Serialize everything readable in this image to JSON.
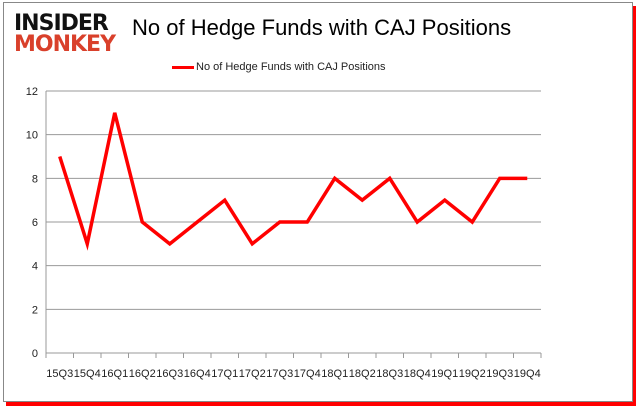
{
  "logo": {
    "line1": "INSIDER",
    "line2": "MONKEY"
  },
  "chart_data": {
    "type": "line",
    "title": "No of Hedge Funds with CAJ Positions",
    "categories": [
      "15Q3",
      "15Q4",
      "16Q1",
      "16Q2",
      "16Q3",
      "16Q4",
      "17Q1",
      "17Q2",
      "17Q3",
      "17Q4",
      "18Q1",
      "18Q2",
      "18Q3",
      "18Q4",
      "19Q1",
      "19Q2",
      "19Q3",
      "19Q4"
    ],
    "series": [
      {
        "name": "No of Hedge Funds with CAJ Positions",
        "values": [
          9,
          5,
          11,
          6,
          5,
          6,
          7,
          5,
          6,
          6,
          8,
          7,
          8,
          6,
          7,
          6,
          8,
          8
        ],
        "color": "#ff0000"
      }
    ],
    "ylim": [
      0,
      12
    ],
    "yticks": [
      0,
      2,
      4,
      6,
      8,
      10,
      12
    ],
    "grid": true,
    "legend_position": "top"
  }
}
